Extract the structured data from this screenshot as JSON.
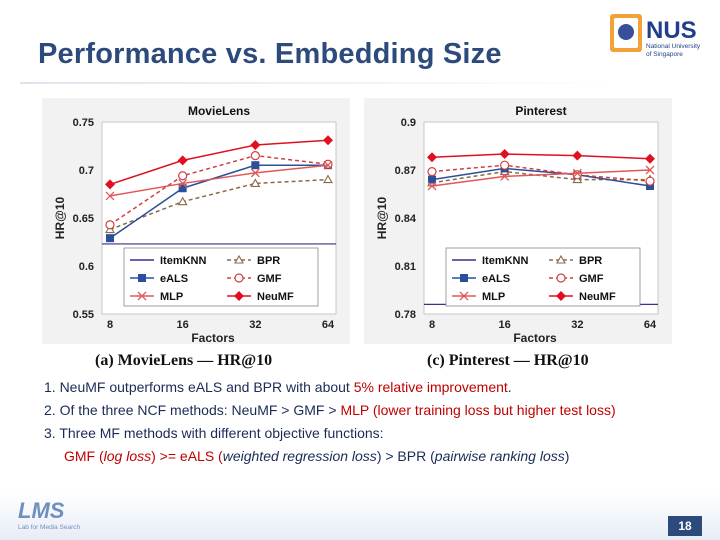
{
  "slide": {
    "title": "Performance vs. Embedding Size",
    "page_number": "18"
  },
  "logo_nus": {
    "name": "NUS",
    "line1": "National University",
    "line2": "of Singapore"
  },
  "logo_lms": {
    "name": "LMS",
    "tagline": "Lab for Media Search"
  },
  "captions": {
    "left": "(a) MovieLens — HR@10",
    "right": "(c) Pinterest — HR@10"
  },
  "notes": {
    "line1_a": "1. NeuMF outperforms eALS and BPR with about ",
    "line1_b": "5% relative improvement",
    "line1_c": ".",
    "line2_a": "2. Of the three NCF methods: NeuMF > GMF > ",
    "line2_b": "MLP (lower training loss but higher test loss)",
    "line3": "3. Three MF methods with different objective functions:",
    "line4_a": "GMF (",
    "line4_b": "log loss",
    "line4_c": ") >= eALS (",
    "line4_d": "weighted regression loss",
    "line4_e": ") > BPR (",
    "line4_f": "pairwise ranking loss",
    "line4_g": ")"
  },
  "chart_data": [
    {
      "type": "line",
      "title": "MovieLens",
      "xlabel": "Factors",
      "ylabel": "HR@10",
      "categories": [
        "8",
        "16",
        "32",
        "64"
      ],
      "ylim": [
        0.55,
        0.75
      ],
      "yticks": [
        "0.55",
        "0.6",
        "0.65",
        "0.7",
        "0.75"
      ],
      "grid": false,
      "legend_position": "bottom-center",
      "series": [
        {
          "name": "ItemKNN",
          "values": [
            0.623,
            0.623,
            0.623,
            0.623
          ],
          "color": "#3b2f8f",
          "marker": "none",
          "dash": false
        },
        {
          "name": "BPR",
          "values": [
            0.638,
            0.667,
            0.686,
            0.69
          ],
          "color": "#8a6a4a",
          "marker": "triangle",
          "dash": true
        },
        {
          "name": "eALS",
          "values": [
            0.629,
            0.681,
            0.705,
            0.705
          ],
          "color": "#2b4f9a",
          "marker": "square",
          "dash": false
        },
        {
          "name": "GMF",
          "values": [
            0.643,
            0.694,
            0.715,
            0.706
          ],
          "color": "#d04040",
          "marker": "circle",
          "dash": true
        },
        {
          "name": "MLP",
          "values": [
            0.673,
            0.686,
            0.697,
            0.705
          ],
          "color": "#e05858",
          "marker": "x",
          "dash": false
        },
        {
          "name": "NeuMF",
          "values": [
            0.685,
            0.71,
            0.726,
            0.731
          ],
          "color": "#e01020",
          "marker": "diamond",
          "dash": false
        }
      ]
    },
    {
      "type": "line",
      "title": "Pinterest",
      "xlabel": "Factors",
      "ylabel": "HR@10",
      "categories": [
        "8",
        "16",
        "32",
        "64"
      ],
      "ylim": [
        0.78,
        0.9
      ],
      "yticks": [
        "0.78",
        "0.81",
        "0.84",
        "0.87",
        "0.9"
      ],
      "grid": false,
      "legend_position": "bottom-center",
      "series": [
        {
          "name": "ItemKNN",
          "values": [
            0.786,
            0.786,
            0.786,
            0.786
          ],
          "color": "#3b2f8f",
          "marker": "none",
          "dash": false
        },
        {
          "name": "BPR",
          "values": [
            0.862,
            0.869,
            0.864,
            0.864
          ],
          "color": "#8a6a4a",
          "marker": "triangle",
          "dash": true
        },
        {
          "name": "eALS",
          "values": [
            0.864,
            0.871,
            0.867,
            0.86
          ],
          "color": "#2b4f9a",
          "marker": "square",
          "dash": false
        },
        {
          "name": "GMF",
          "values": [
            0.869,
            0.873,
            0.867,
            0.863
          ],
          "color": "#d04040",
          "marker": "circle",
          "dash": true
        },
        {
          "name": "MLP",
          "values": [
            0.86,
            0.866,
            0.868,
            0.87
          ],
          "color": "#e05858",
          "marker": "x",
          "dash": false
        },
        {
          "name": "NeuMF",
          "values": [
            0.878,
            0.88,
            0.879,
            0.877
          ],
          "color": "#e01020",
          "marker": "diamond",
          "dash": false
        }
      ]
    }
  ]
}
